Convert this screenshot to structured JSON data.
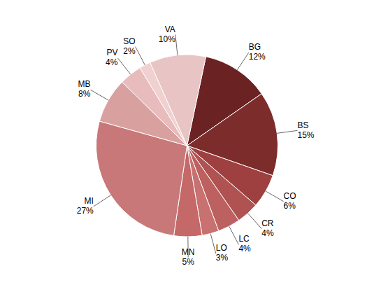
{
  "chart_data": {
    "type": "pie",
    "categories": [
      "BG",
      "BS",
      "CO",
      "CR",
      "LC",
      "LO",
      "MN",
      "MI",
      "MB",
      "PV",
      "SO",
      "VA"
    ],
    "values": [
      12,
      15,
      6,
      4,
      4,
      3,
      5,
      27,
      8,
      4,
      2,
      10
    ],
    "value_labels": [
      "12%",
      "15%",
      "6%",
      "4%",
      "4%",
      "3%",
      "5%",
      "27%",
      "8%",
      "4%",
      "2%",
      "10%"
    ],
    "colors": [
      "#6b2222",
      "#7d2c2c",
      "#9e4040",
      "#b05252",
      "#bd6060",
      "#c97070",
      "#c46868",
      "#c87878",
      "#d9a0a0",
      "#e8bcbc",
      "#f0d0d0",
      "#e8c4c4"
    ]
  }
}
